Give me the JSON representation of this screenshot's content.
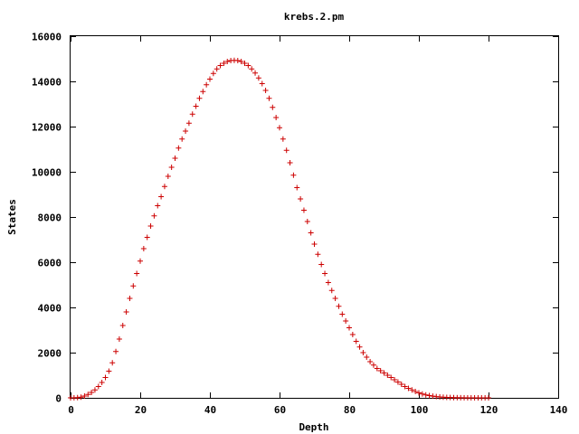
{
  "chart_data": {
    "type": "scatter",
    "title": "krebs.2.pm",
    "xlabel": "Depth",
    "ylabel": "States",
    "xlim": [
      0,
      140
    ],
    "ylim": [
      0,
      16000
    ],
    "xticks": [
      0,
      20,
      40,
      60,
      80,
      100,
      120,
      140
    ],
    "yticks": [
      0,
      2000,
      4000,
      6000,
      8000,
      10000,
      12000,
      14000,
      16000
    ],
    "grid": false,
    "legend": "none",
    "marker": "plus",
    "series_color": "#cc0000",
    "series": [
      {
        "x": [
          0,
          1,
          2,
          3,
          4,
          5,
          6,
          7,
          8,
          9,
          10,
          11,
          12,
          13,
          14,
          15,
          16,
          17,
          18,
          19,
          20,
          21,
          22,
          23,
          24,
          25,
          26,
          27,
          28,
          29,
          30,
          31,
          32,
          33,
          34,
          35,
          36,
          37,
          38,
          39,
          40,
          41,
          42,
          43,
          44,
          45,
          46,
          47,
          48,
          49,
          50,
          51,
          52,
          53,
          54,
          55,
          56,
          57,
          58,
          59,
          60,
          61,
          62,
          63,
          64,
          65,
          66,
          67,
          68,
          69,
          70,
          71,
          72,
          73,
          74,
          75,
          76,
          77,
          78,
          79,
          80,
          81,
          82,
          83,
          84,
          85,
          86,
          87,
          88,
          89,
          90,
          91,
          92,
          93,
          94,
          95,
          96,
          97,
          98,
          99,
          100,
          101,
          102,
          103,
          104,
          105,
          106,
          107,
          108,
          109,
          110,
          111,
          112,
          113,
          114,
          115,
          116,
          117,
          118,
          119,
          120
        ],
        "y": [
          1,
          3,
          10,
          30,
          80,
          150,
          240,
          350,
          500,
          680,
          900,
          1180,
          1550,
          2050,
          2600,
          3200,
          3800,
          4400,
          4950,
          5500,
          6050,
          6600,
          7100,
          7600,
          8050,
          8500,
          8900,
          9350,
          9800,
          10200,
          10600,
          11050,
          11450,
          11800,
          12150,
          12550,
          12900,
          13250,
          13550,
          13850,
          14100,
          14350,
          14550,
          14700,
          14800,
          14880,
          14920,
          14930,
          14920,
          14880,
          14800,
          14700,
          14550,
          14370,
          14150,
          13900,
          13600,
          13250,
          12850,
          12400,
          11950,
          11450,
          10950,
          10400,
          9850,
          9300,
          8800,
          8300,
          7800,
          7300,
          6800,
          6350,
          5900,
          5500,
          5100,
          4750,
          4400,
          4050,
          3700,
          3400,
          3100,
          2800,
          2500,
          2250,
          2000,
          1800,
          1600,
          1450,
          1300,
          1200,
          1100,
          1000,
          900,
          800,
          700,
          600,
          500,
          420,
          350,
          280,
          220,
          170,
          130,
          100,
          75,
          55,
          40,
          28,
          20,
          15,
          10,
          7,
          5,
          3,
          2,
          1,
          1,
          0,
          0,
          0,
          0
        ]
      }
    ]
  }
}
